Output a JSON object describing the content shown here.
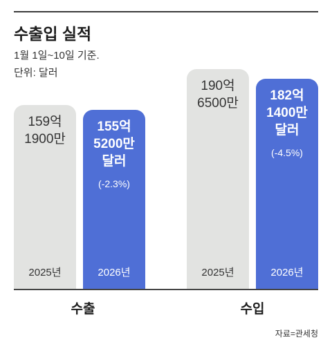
{
  "header": {
    "title": "수출입 실적",
    "period": "1월 1일~10일 기준.",
    "unit": "단위: 달러"
  },
  "colors": {
    "prev_bar": "#e2e3e1",
    "curr_bar": "#4f6fd6"
  },
  "chart_data": {
    "type": "bar",
    "categories": [
      "수출",
      "수입"
    ],
    "series": [
      {
        "name": "2025년",
        "values": [
          15919000000,
          19065000000
        ],
        "labels": [
          "159억\n1900만",
          "190억\n6500만"
        ]
      },
      {
        "name": "2026년",
        "values": [
          15552000000,
          18214000000
        ],
        "labels": [
          "155억\n5200만\n달러",
          "182억\n1400만\n달러"
        ],
        "change": [
          "(-2.3%)",
          "(-4.5%)"
        ]
      }
    ],
    "ylim": [
      0,
      19065000000
    ]
  },
  "source": "자료=관세청"
}
